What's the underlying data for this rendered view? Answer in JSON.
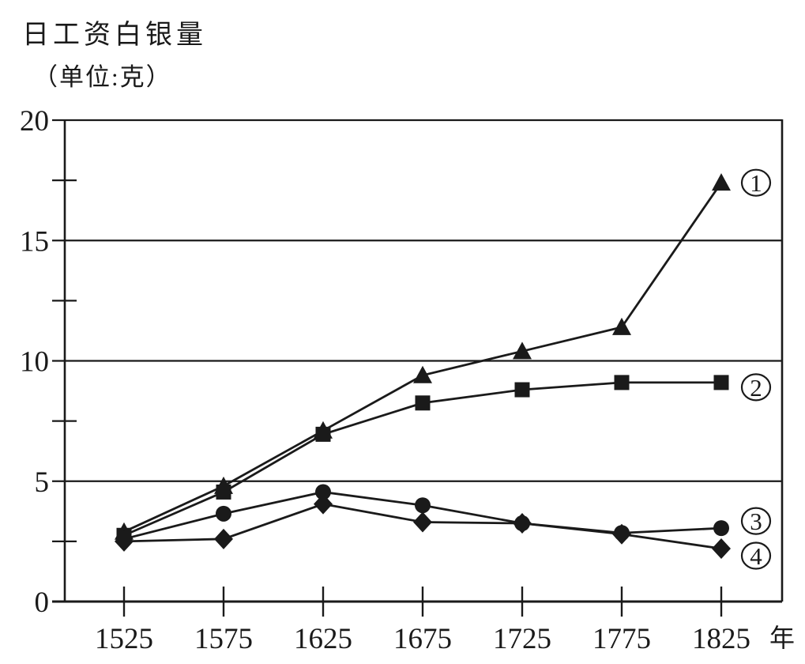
{
  "chart_data": {
    "type": "line",
    "title": "日工资白银量",
    "unit_label": "（单位:克）",
    "x_axis_suffix": "年",
    "categories": [
      "1525",
      "1575",
      "1625",
      "1675",
      "1725",
      "1775",
      "1825"
    ],
    "ylim": [
      0,
      20
    ],
    "y_axis": {
      "major_ticks": [
        0,
        5,
        10,
        15,
        20
      ],
      "major_labels": [
        "0",
        "5",
        "10",
        "15",
        "20"
      ],
      "minor_ticks": [
        2.5,
        7.5,
        12.5,
        17.5
      ]
    },
    "grid": "horizontal major gridlines, boxed plot area",
    "legend_position": "circled numbers at right end of each line",
    "series": [
      {
        "name": "①",
        "digit": "1",
        "marker": "triangle",
        "values": [
          2.9,
          4.8,
          7.1,
          9.4,
          10.4,
          11.4,
          17.4
        ]
      },
      {
        "name": "②",
        "digit": "2",
        "marker": "square",
        "values": [
          2.75,
          4.55,
          6.95,
          8.25,
          8.8,
          9.1,
          9.1
        ]
      },
      {
        "name": "③",
        "digit": "3",
        "marker": "circle",
        "values": [
          2.6,
          3.65,
          4.55,
          4.0,
          3.25,
          2.85,
          3.05
        ]
      },
      {
        "name": "④",
        "digit": "4",
        "marker": "diamond",
        "values": [
          2.5,
          2.6,
          4.05,
          3.3,
          3.25,
          2.8,
          2.2
        ]
      }
    ],
    "colors": {
      "line": "#1a1a1a",
      "background": "#ffffff"
    }
  }
}
